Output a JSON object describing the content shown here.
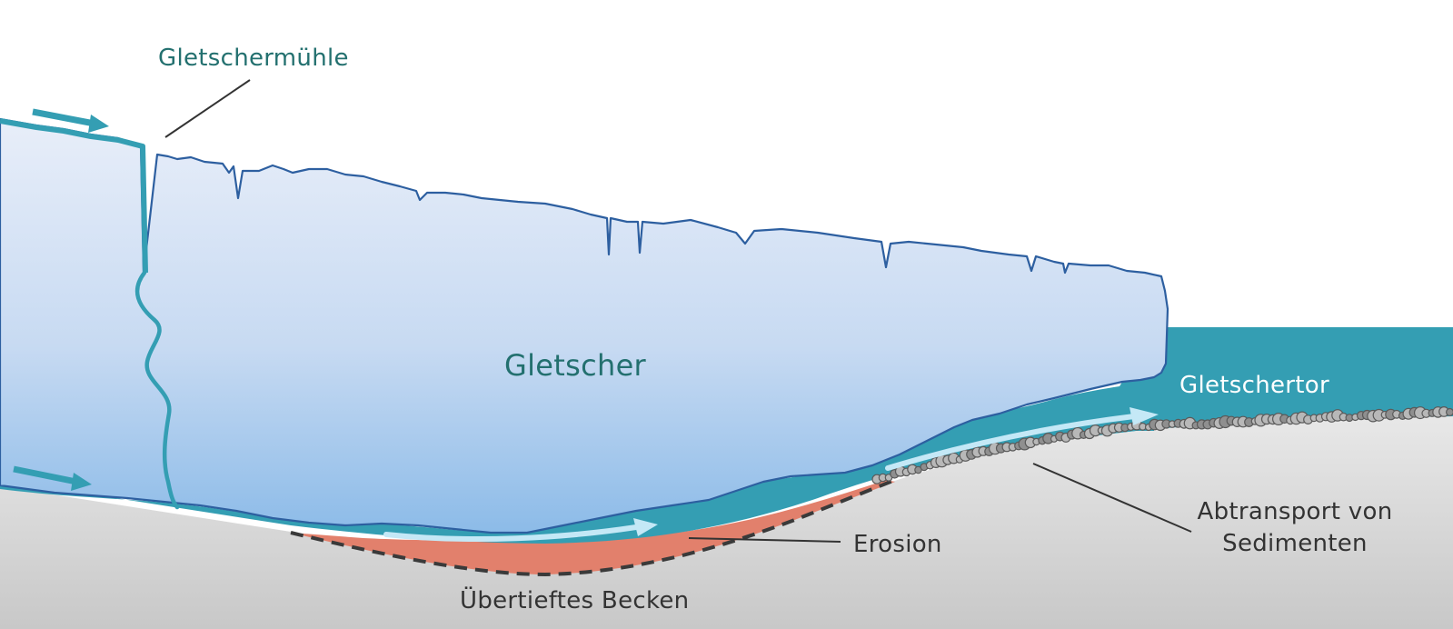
{
  "diagram": {
    "labels": {
      "moulin": "Gletschermühle",
      "glacier": "Gletscher",
      "portal": "Gletschertor",
      "erosion": "Erosion",
      "basin": "Übertieftes Becken",
      "sediment_line1": "Abtransport von",
      "sediment_line2": "Sedimenten"
    },
    "colors": {
      "ice_top": "#e6edf8",
      "ice_bottom": "#8dbce9",
      "ice_outline": "#2d5fa0",
      "meltwater": "#349eb3",
      "flow_arrow": "#bfe6f5",
      "erosion": "#e2806c",
      "ground_top": "#e6e6e6",
      "ground_bottom": "#c9c9c9",
      "pebble_fill": "#b3b3b3",
      "pebble_stroke": "#5a5a5a",
      "dashed_line": "#3a3a3a",
      "label_teal": "#23706f",
      "label_dark": "#333333"
    }
  }
}
